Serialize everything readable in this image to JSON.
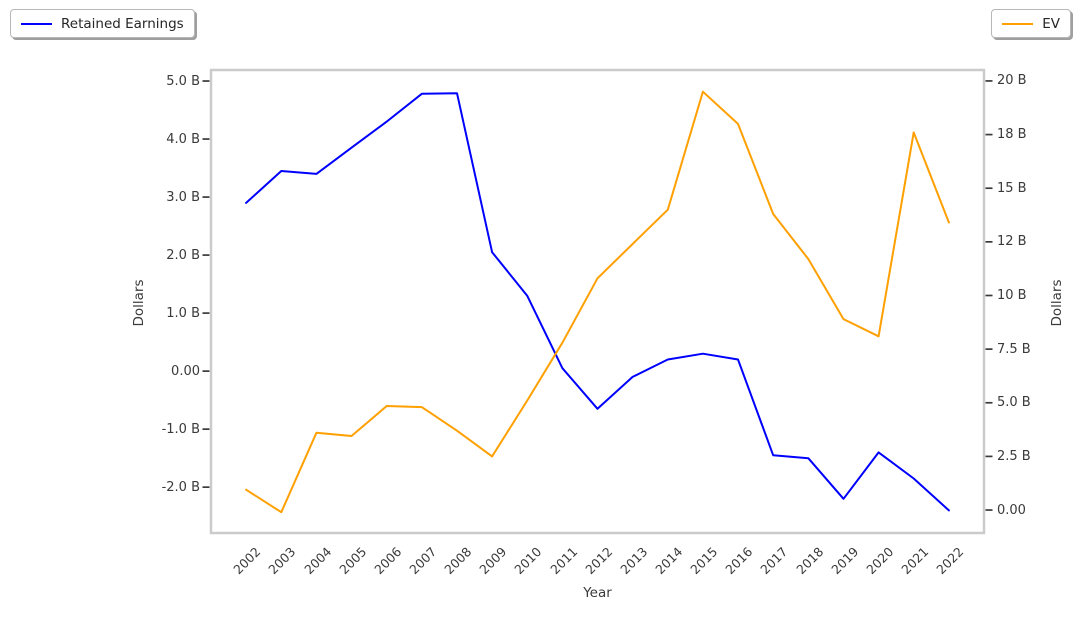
{
  "chart_data": {
    "type": "line",
    "title": "",
    "xlabel": "Year",
    "ylabel_left": "Dollars",
    "ylabel_right": "Dollars",
    "x": [
      2002,
      2003,
      2004,
      2005,
      2006,
      2007,
      2008,
      2009,
      2010,
      2011,
      2012,
      2013,
      2014,
      2015,
      2016,
      2017,
      2018,
      2019,
      2020,
      2021,
      2022
    ],
    "series": [
      {
        "name": "Retained Earnings",
        "axis": "left",
        "color": "#0000ff",
        "unit": "B Dollars",
        "values": [
          2.9,
          3.45,
          3.4,
          3.85,
          4.3,
          4.78,
          4.79,
          2.05,
          1.3,
          0.05,
          -0.65,
          -0.1,
          0.2,
          0.3,
          0.2,
          -1.45,
          -1.5,
          -2.2,
          -1.4,
          -1.85,
          -2.4
        ]
      },
      {
        "name": "EV",
        "axis": "right",
        "color": "#ffa000",
        "unit": "B Dollars",
        "values": [
          0.95,
          -0.1,
          3.6,
          3.45,
          4.85,
          4.8,
          3.7,
          2.5,
          5.1,
          7.8,
          10.8,
          12.4,
          14.0,
          19.5,
          18.0,
          13.8,
          11.7,
          8.9,
          8.1,
          17.6,
          13.4
        ]
      }
    ],
    "xlim": [
      2001,
      2023
    ],
    "ylim_left": [
      -2.79,
      5.19
    ],
    "ylim_right": [
      -1.07,
      20.51
    ],
    "left_ticks": [
      {
        "value": 5.0,
        "label": "5.0 B"
      },
      {
        "value": 4.0,
        "label": "4.0 B"
      },
      {
        "value": 3.0,
        "label": "3.0 B"
      },
      {
        "value": 2.0,
        "label": "2.0 B"
      },
      {
        "value": 1.0,
        "label": "1.0 B"
      },
      {
        "value": 0.0,
        "label": "0.00"
      },
      {
        "value": -1.0,
        "label": "-1.0 B"
      },
      {
        "value": -2.0,
        "label": "-2.0 B"
      }
    ],
    "right_ticks": [
      {
        "value": 20.0,
        "label": "20 B"
      },
      {
        "value": 17.5,
        "label": "18 B"
      },
      {
        "value": 15.0,
        "label": "15 B"
      },
      {
        "value": 12.5,
        "label": "12 B"
      },
      {
        "value": 10.0,
        "label": "10 B"
      },
      {
        "value": 7.5,
        "label": "7.5 B"
      },
      {
        "value": 5.0,
        "label": "5.0 B"
      },
      {
        "value": 2.5,
        "label": "2.5 B"
      },
      {
        "value": 0.0,
        "label": "0.00"
      }
    ],
    "x_ticks": [
      "2002",
      "2003",
      "2004",
      "2005",
      "2006",
      "2007",
      "2008",
      "2009",
      "2010",
      "2011",
      "2012",
      "2013",
      "2014",
      "2015",
      "2016",
      "2017",
      "2018",
      "2019",
      "2020",
      "2021",
      "2022"
    ],
    "grid": false,
    "legend_positions": {
      "retained_earnings": "top-left",
      "ev": "top-right"
    },
    "colors": {
      "frame": "#cbcbcb",
      "tick_mark": "#3a3a3a",
      "tick_text": "#3a3a3a",
      "axis_label_text": "#3a3a3a",
      "legend_border": "#b7b7b7",
      "background": "#ffffff"
    }
  }
}
